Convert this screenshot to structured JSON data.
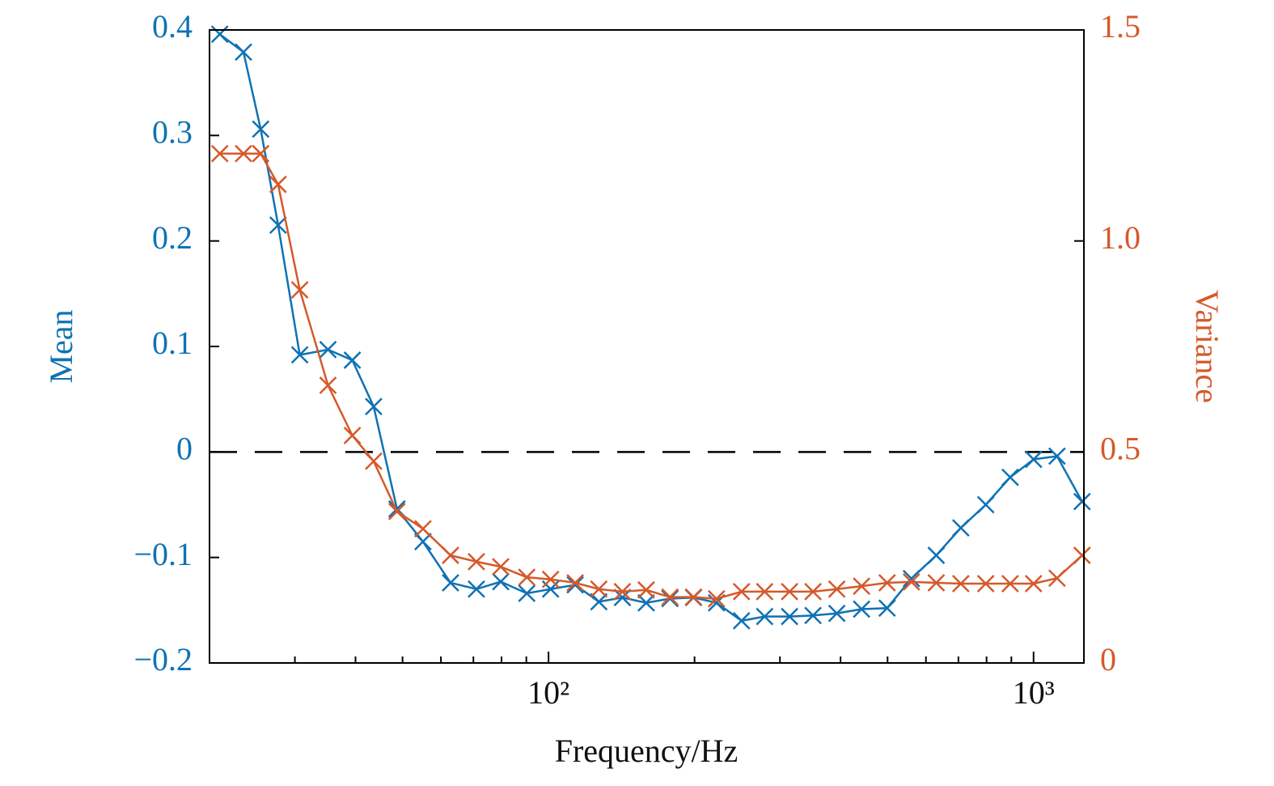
{
  "chart_data": {
    "type": "line",
    "xlabel": "Frequency/Hz",
    "ylabel": "Mean",
    "y2label": "Variance",
    "xscale": "log",
    "x": [
      21,
      23.5,
      25.5,
      27.7,
      30.7,
      35.1,
      39.4,
      43.6,
      48.7,
      55.1,
      62.8,
      71,
      79.7,
      90.2,
      101,
      113.5,
      127,
      142,
      159,
      178,
      199,
      222,
      250,
      279,
      314,
      351,
      393,
      442,
      499,
      560,
      630,
      708,
      797,
      895,
      1000,
      1118,
      1259
    ],
    "series": [
      {
        "name": "Mean",
        "color": "#0f72b4",
        "axis": "y",
        "marker": "x",
        "values": [
          0.396,
          0.379,
          0.306,
          0.215,
          0.092,
          0.097,
          0.087,
          0.043,
          -0.054,
          -0.085,
          -0.124,
          -0.13,
          -0.123,
          -0.134,
          -0.13,
          -0.126,
          -0.142,
          -0.138,
          -0.143,
          -0.139,
          -0.138,
          -0.143,
          -0.16,
          -0.156,
          -0.156,
          -0.155,
          -0.153,
          -0.149,
          -0.148,
          -0.12,
          -0.098,
          -0.072,
          -0.05,
          -0.024,
          -0.007,
          -0.004,
          -0.047
        ]
      },
      {
        "name": "Variance",
        "color": "#d5592a",
        "axis": "y2",
        "marker": "x",
        "values": [
          1.207,
          1.207,
          1.207,
          1.134,
          0.884,
          0.658,
          0.539,
          0.478,
          0.359,
          0.318,
          0.255,
          0.24,
          0.228,
          0.203,
          0.198,
          0.19,
          0.175,
          0.169,
          0.173,
          0.156,
          0.156,
          0.152,
          0.169,
          0.169,
          0.169,
          0.169,
          0.175,
          0.182,
          0.19,
          0.192,
          0.19,
          0.188,
          0.188,
          0.188,
          0.188,
          0.201,
          0.255
        ]
      }
    ],
    "xlim": [
      20,
      1270
    ],
    "xticks": [
      {
        "value": 100,
        "label": "10²"
      },
      {
        "value": 1000,
        "label": "10³"
      }
    ],
    "xminorticks": [
      30,
      40,
      50,
      60,
      70,
      80,
      90,
      200,
      300,
      400,
      500,
      600,
      700,
      800,
      900
    ],
    "ylim": [
      -0.2,
      0.4
    ],
    "yticks": [
      {
        "value": -0.2,
        "label": "−0.2"
      },
      {
        "value": -0.1,
        "label": "−0.1"
      },
      0,
      0.1,
      0.2,
      0.3,
      0.4
    ],
    "y2lim": [
      0,
      1.5
    ],
    "y2ticks": [
      0,
      0.5,
      {
        "value": 1,
        "label": "1.0"
      },
      1.5
    ],
    "hline": {
      "y": 0,
      "style": "dashed",
      "color": "#000000"
    }
  }
}
